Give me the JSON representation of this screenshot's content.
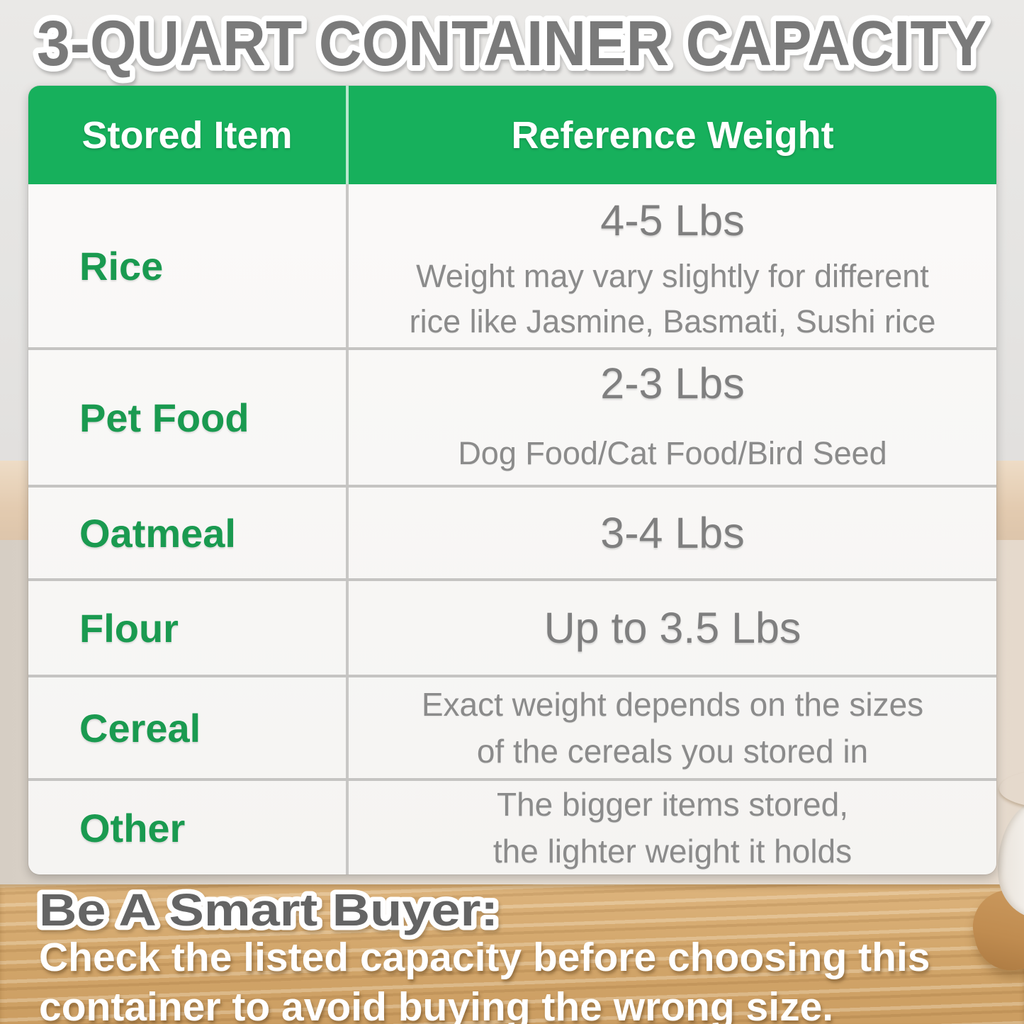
{
  "title": "3-QUART CONTAINER CAPACITY",
  "colors": {
    "header_green": "#17b05c",
    "item_green": "#1a9a50",
    "weight_gray": "#7f7f7f",
    "title_gray": "#7a7a7a",
    "wood": "#d3a76c"
  },
  "table": {
    "header": {
      "item": "Stored Item",
      "weight": "Reference Weight"
    },
    "rows": [
      {
        "item": "Rice",
        "weight": "4-5 Lbs",
        "note1": "Weight may vary slightly for different",
        "note2": "rice like Jasmine, Basmati, Sushi rice"
      },
      {
        "item": "Pet Food",
        "weight": "2-3 Lbs",
        "note1": "Dog Food/Cat Food/Bird Seed"
      },
      {
        "item": "Oatmeal",
        "weight": "3-4 Lbs"
      },
      {
        "item": "Flour",
        "weight": "Up to 3.5 Lbs"
      },
      {
        "item": "Cereal",
        "note1": "Exact weight depends on the sizes",
        "note2": "of the cereals you stored in"
      },
      {
        "item": "Other",
        "note1": "The bigger items stored,",
        "note2": "the lighter weight it holds"
      }
    ]
  },
  "footer": {
    "heading": "Be A Smart Buyer:",
    "line1": "Check the listed capacity before choosing this",
    "line2": "container to avoid buying the wrong size."
  },
  "chart_data": {
    "type": "table",
    "title": "3-QUART CONTAINER CAPACITY",
    "columns": [
      "Stored Item",
      "Reference Weight"
    ],
    "rows": [
      [
        "Rice",
        "4-5 Lbs — Weight may vary slightly for different rice like Jasmine, Basmati, Sushi rice"
      ],
      [
        "Pet Food",
        "2-3 Lbs — Dog Food/Cat Food/Bird Seed"
      ],
      [
        "Oatmeal",
        "3-4 Lbs"
      ],
      [
        "Flour",
        "Up to 3.5 Lbs"
      ],
      [
        "Cereal",
        "Exact weight depends on the sizes of the cereals you stored in"
      ],
      [
        "Other",
        "The bigger items stored, the lighter weight it holds"
      ]
    ],
    "legend_position": "none",
    "grid": true
  }
}
